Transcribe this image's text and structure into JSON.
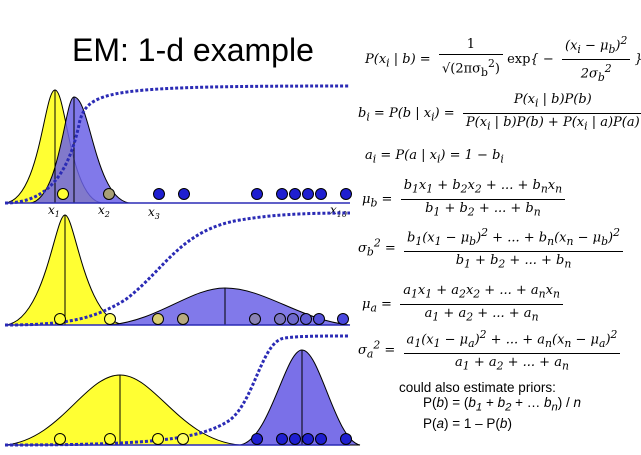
{
  "title": "EM: 1-d example",
  "colors": {
    "class_a": "#ffff33",
    "class_b": "#6b61e6",
    "posterior_curve": "#2b2bb5",
    "axis": "#2b2bb5"
  },
  "point_labels": [
    "x",
    "1",
    "x",
    "2",
    "x",
    "3",
    "x",
    "10"
  ],
  "points": [
    1,
    2,
    3,
    4,
    5,
    6,
    7,
    8,
    9,
    10
  ],
  "equations": {
    "gaussian_lhs": "P(x",
    "gaussian_lhs2": "i",
    "gaussian_lhs3": " | b) =",
    "gaussian_num": "1",
    "gaussian_den": "√(2πσ",
    "gaussian_exp": "exp{ − (x",
    "b_i_lhs": "b",
    "b_i_def": " = P(b | x",
    "b_i_num": "P(x | b)P(b)",
    "b_i_den": "P(x | b)P(b) + P(x | a)P(a)",
    "a_i": "= P(a | x",
    "a_i_rest": ") = 1 − b",
    "mu_b_num": "b x + b x + ... + b x",
    "mu_b_den": "b + b + ... + b",
    "sigma_b_num": "b (x − μ )² + ... + b (x − μ )²",
    "sigma_b_den": "b + b + ... + b",
    "mu_a_num": "a x + a x + ... + a x",
    "mu_a_den": "a + a + ... + a",
    "sigma_a_num": "a (x − μ )² + ... + a (x − μ )²",
    "sigma_a_den": "a + a + ... + a"
  },
  "note": {
    "line1": "could also estimate priors:",
    "line2": "P(b) = (b1 + b2 + … bn) / n",
    "line3": "P(a) = 1 – P(b)"
  }
}
